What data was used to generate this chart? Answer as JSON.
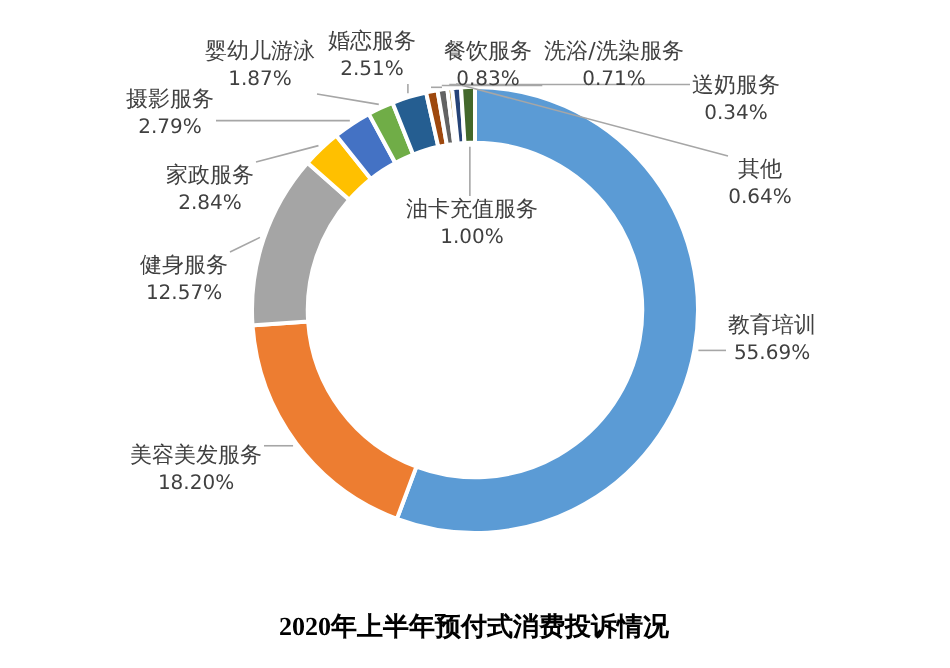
{
  "chart_data": {
    "type": "donut",
    "title": "2020年上半年预付式消费投诉情况",
    "categories": [
      "教育培训",
      "美容美发服务",
      "健身服务",
      "家政服务",
      "摄影服务",
      "婴幼儿游泳",
      "婚恋服务",
      "餐饮服务",
      "洗浴/洗染服务",
      "送奶服务",
      "其他",
      "油卡充值服务"
    ],
    "values": [
      55.69,
      18.2,
      12.57,
      2.84,
      2.79,
      1.87,
      2.51,
      0.83,
      0.71,
      0.34,
      0.64,
      1.0
    ],
    "value_labels": [
      "55.69%",
      "18.20%",
      "12.57%",
      "2.84%",
      "2.79%",
      "1.87%",
      "2.51%",
      "0.83%",
      "0.71%",
      "0.34%",
      "0.64%",
      "1.00%"
    ],
    "colors": [
      "#5b9bd5",
      "#ed7d31",
      "#a5a5a5",
      "#ffc000",
      "#4472c4",
      "#70ad47",
      "#255e91",
      "#9e480e",
      "#636363",
      "#997300",
      "#264478",
      "#43682b"
    ],
    "legend": false
  }
}
